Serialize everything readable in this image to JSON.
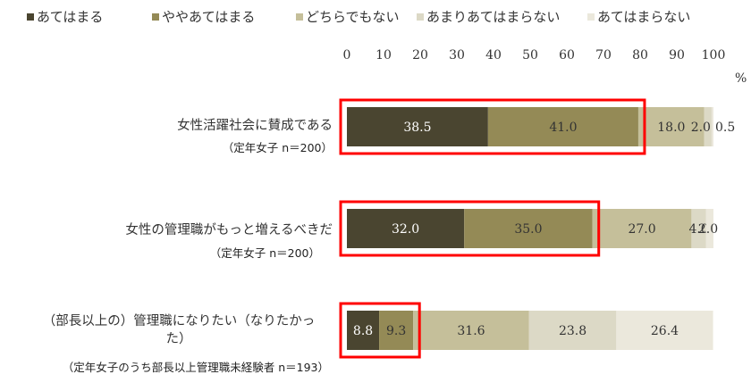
{
  "chart_data": {
    "type": "bar",
    "orientation": "horizontal",
    "stacked": true,
    "unit": "%",
    "xlim": [
      0,
      100
    ],
    "x_ticks": [
      "0",
      "10",
      "20",
      "30",
      "40",
      "50",
      "60",
      "70",
      "80",
      "90",
      "100"
    ],
    "legend_position": "top",
    "grid": false,
    "categories": [
      {
        "label": "女性活躍社会に賛成である",
        "sublabel": "（定年女子 n＝200）"
      },
      {
        "label": "女性の管理職がもっと増えるべきだ",
        "sublabel": "（定年女子 n＝200）"
      },
      {
        "label": "（部長以上の）管理職になりたい（なりたかった）",
        "sublabel": "（定年女子のうち部長以上管理職未経験者 n＝193）"
      }
    ],
    "series": [
      {
        "name": "あてはまる",
        "color": "#4a4530",
        "text_color": "#ffffff",
        "values": [
          38.5,
          32.0,
          8.8
        ]
      },
      {
        "name": "ややあてはまる",
        "color": "#948a56",
        "text_color": "#333333",
        "values": [
          41.0,
          35.0,
          9.3
        ]
      },
      {
        "name": "どちらでもない",
        "color": "#c5bf9a",
        "text_color": "#333333",
        "values": [
          18.0,
          27.0,
          31.6
        ]
      },
      {
        "name": "あまりあてはまらない",
        "color": "#dcd9c6",
        "text_color": "#333333",
        "values": [
          2.0,
          4.0,
          23.8
        ]
      },
      {
        "name": "あてはまらない",
        "color": "#ebe8dc",
        "text_color": "#333333",
        "values": [
          0.5,
          2.0,
          26.4
        ]
      }
    ],
    "highlight_color": "#ff0000"
  }
}
